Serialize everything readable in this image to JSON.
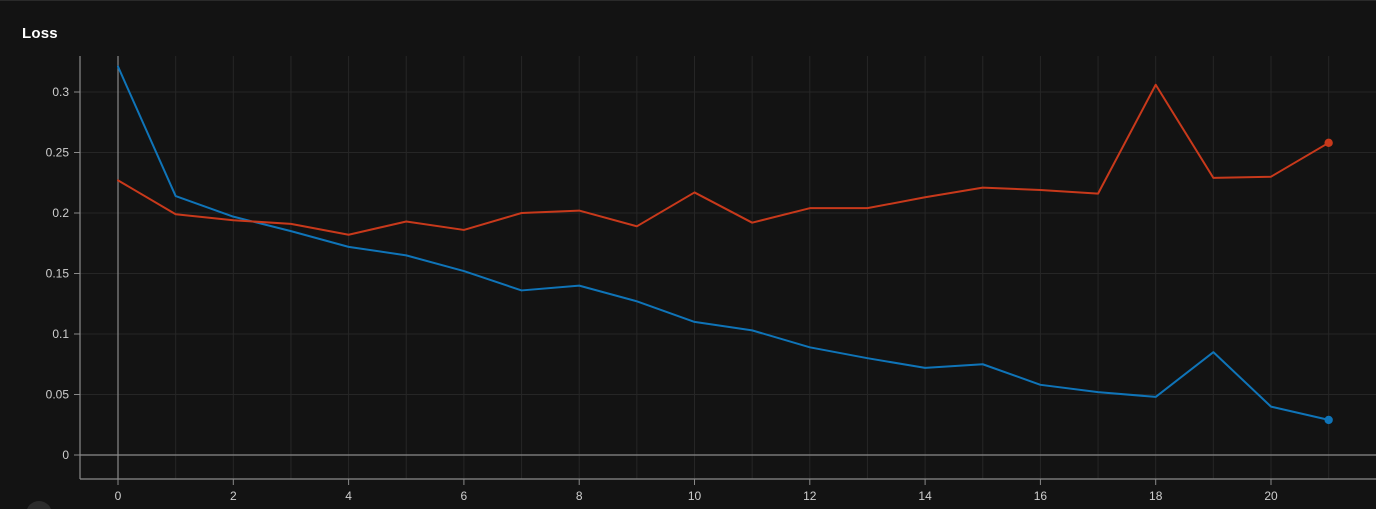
{
  "panel": {
    "title": "Loss"
  },
  "colors": {
    "background": "#131313",
    "grid": "#262626",
    "axis": "#8a8a8a",
    "text": "#cfcfcf",
    "series_blue": "#0f74b8",
    "series_red": "#c8391b"
  },
  "chart_data": {
    "type": "line",
    "title": "Loss",
    "xlabel": "",
    "ylabel": "",
    "xlim": [
      -0.7,
      22.0
    ],
    "ylim": [
      -0.02,
      0.33
    ],
    "x_ticks": [
      0,
      2,
      4,
      6,
      8,
      10,
      12,
      14,
      16,
      18,
      20
    ],
    "y_ticks": [
      0,
      0.05,
      0.1,
      0.15,
      0.2,
      0.25,
      0.3
    ],
    "y_tick_labels": [
      "0",
      "0.05",
      "0.1",
      "0.15",
      "0.2",
      "0.25",
      "0.3"
    ],
    "grid": true,
    "legend": "none",
    "x": [
      0,
      1,
      2,
      3,
      4,
      5,
      6,
      7,
      8,
      9,
      10,
      11,
      12,
      13,
      14,
      15,
      16,
      17,
      18,
      19,
      20,
      21
    ],
    "series": [
      {
        "color": "#0f74b8",
        "values": [
          0.321,
          0.214,
          0.197,
          0.185,
          0.172,
          0.165,
          0.152,
          0.136,
          0.14,
          0.127,
          0.11,
          0.103,
          0.089,
          0.08,
          0.072,
          0.075,
          0.058,
          0.052,
          0.048,
          0.085,
          0.04,
          0.029
        ]
      },
      {
        "color": "#c8391b",
        "values": [
          0.227,
          0.199,
          0.194,
          0.191,
          0.182,
          0.193,
          0.186,
          0.2,
          0.202,
          0.189,
          0.217,
          0.192,
          0.204,
          0.204,
          0.213,
          0.221,
          0.219,
          0.216,
          0.306,
          0.229,
          0.23,
          0.258
        ]
      }
    ]
  }
}
